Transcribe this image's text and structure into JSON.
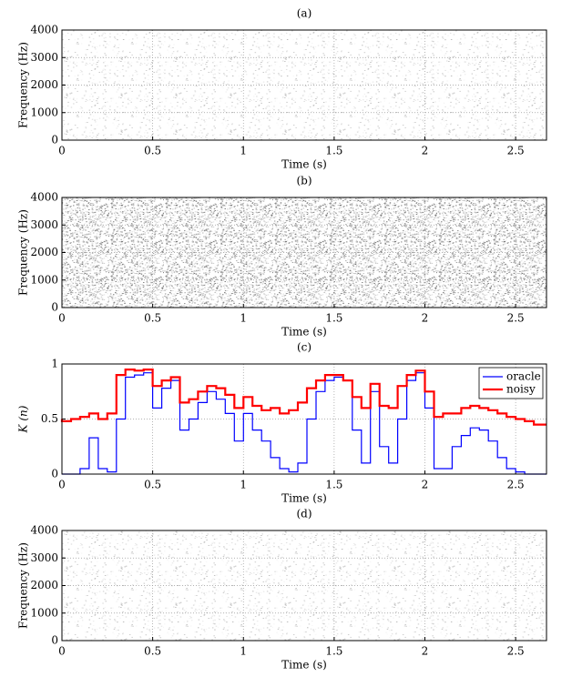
{
  "chart_data": [
    {
      "type": "spectrogram",
      "title": "(a)",
      "xlabel": "Time (s)",
      "ylabel": "Frequency (Hz)",
      "xlim": [
        0,
        2.67
      ],
      "xticks": [
        0,
        0.5,
        1,
        1.5,
        2,
        2.5
      ],
      "ylim": [
        0,
        4000
      ],
      "yticks": [
        0,
        1000,
        2000,
        3000,
        4000
      ],
      "grid": true
    },
    {
      "type": "spectrogram",
      "title": "(b)",
      "xlabel": "Time (s)",
      "ylabel": "Frequency (Hz)",
      "xlim": [
        0,
        2.67
      ],
      "xticks": [
        0,
        0.5,
        1,
        1.5,
        2,
        2.5
      ],
      "ylim": [
        0,
        4000
      ],
      "yticks": [
        0,
        1000,
        2000,
        3000,
        4000
      ],
      "grid": true
    },
    {
      "type": "line",
      "title": "(c)",
      "xlabel": "Time (s)",
      "ylabel": "K (n)",
      "xlim": [
        0,
        2.67
      ],
      "xticks": [
        0,
        0.5,
        1,
        1.5,
        2,
        2.5
      ],
      "ylim": [
        0,
        1
      ],
      "yticks": [
        0,
        0.5,
        1
      ],
      "grid": true,
      "legend": "upper right",
      "x": [
        0,
        0.05,
        0.1,
        0.15,
        0.2,
        0.25,
        0.3,
        0.35,
        0.4,
        0.45,
        0.5,
        0.55,
        0.6,
        0.65,
        0.7,
        0.75,
        0.8,
        0.85,
        0.9,
        0.95,
        1.0,
        1.05,
        1.1,
        1.15,
        1.2,
        1.25,
        1.3,
        1.35,
        1.4,
        1.45,
        1.5,
        1.55,
        1.6,
        1.65,
        1.7,
        1.75,
        1.8,
        1.85,
        1.9,
        1.95,
        2.0,
        2.05,
        2.1,
        2.15,
        2.2,
        2.25,
        2.3,
        2.35,
        2.4,
        2.45,
        2.5,
        2.55,
        2.6,
        2.65
      ],
      "series": [
        {
          "name": "oracle",
          "color": "#0000ff",
          "values": [
            0,
            0,
            0,
            0.05,
            0.33,
            0.05,
            0.02,
            0.5,
            0.88,
            0.9,
            0.92,
            0.6,
            0.78,
            0.85,
            0.4,
            0.5,
            0.65,
            0.75,
            0.68,
            0.55,
            0.3,
            0.55,
            0.4,
            0.3,
            0.15,
            0.05,
            0.02,
            0.1,
            0.5,
            0.75,
            0.85,
            0.88,
            0.85,
            0.4,
            0.1,
            0.75,
            0.25,
            0.1,
            0.5,
            0.85,
            0.92,
            0.6,
            0.05,
            0.05,
            0.25,
            0.35,
            0.42,
            0.4,
            0.3,
            0.15,
            0.05,
            0.02,
            0,
            0
          ]
        },
        {
          "name": "noisy",
          "color": "#ff0000",
          "values": [
            0.5,
            0.48,
            0.5,
            0.52,
            0.55,
            0.5,
            0.55,
            0.9,
            0.95,
            0.94,
            0.95,
            0.8,
            0.85,
            0.88,
            0.65,
            0.68,
            0.75,
            0.8,
            0.78,
            0.72,
            0.6,
            0.7,
            0.62,
            0.58,
            0.6,
            0.55,
            0.58,
            0.65,
            0.78,
            0.85,
            0.9,
            0.9,
            0.85,
            0.7,
            0.6,
            0.82,
            0.62,
            0.6,
            0.8,
            0.9,
            0.94,
            0.75,
            0.52,
            0.55,
            0.55,
            0.6,
            0.62,
            0.6,
            0.58,
            0.55,
            0.52,
            0.5,
            0.48,
            0.45
          ]
        }
      ]
    },
    {
      "type": "spectrogram",
      "title": "(d)",
      "xlabel": "Time (s)",
      "ylabel": "Frequency (Hz)",
      "xlim": [
        0,
        2.67
      ],
      "xticks": [
        0,
        0.5,
        1,
        1.5,
        2,
        2.5
      ],
      "ylim": [
        0,
        4000
      ],
      "yticks": [
        0,
        1000,
        2000,
        3000,
        4000
      ],
      "grid": true
    }
  ]
}
